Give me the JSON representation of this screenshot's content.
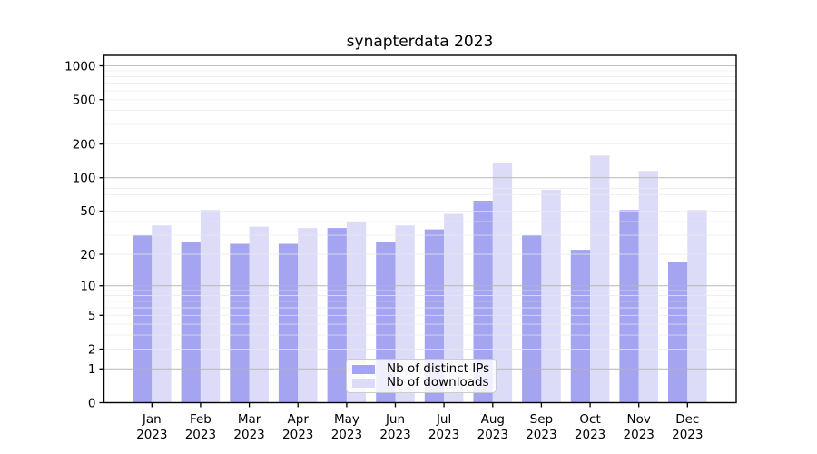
{
  "figure": {
    "background": "#ffffff",
    "axis_color": "#000000",
    "major_grid_color": "#b5b5b5",
    "minor_grid_color": "#e9e9e9"
  },
  "chart_data": {
    "type": "bar",
    "title": "synapterdata 2023",
    "xlabel": "",
    "ylabel": "",
    "yscale": "log1p",
    "ylim": [
      0,
      1239
    ],
    "grid": "on",
    "legend_position": "lower center",
    "x_tick_months": [
      "Jan",
      "Feb",
      "Mar",
      "Apr",
      "May",
      "Jun",
      "Jul",
      "Aug",
      "Sep",
      "Oct",
      "Nov",
      "Dec"
    ],
    "x_tick_year": "2023",
    "ytick_labels": [
      "0",
      "1",
      "2",
      "5",
      "10",
      "20",
      "50",
      "100",
      "200",
      "500",
      "1000"
    ],
    "ytick_values": [
      0,
      1,
      2,
      5,
      10,
      20,
      50,
      100,
      200,
      500,
      1000
    ],
    "grid_major_values": [
      1,
      10,
      100,
      1000
    ],
    "grid_minor_values": [
      2,
      3,
      4,
      5,
      6,
      7,
      8,
      9,
      20,
      30,
      40,
      50,
      60,
      70,
      80,
      90,
      200,
      300,
      400,
      500,
      600,
      700,
      800,
      900
    ],
    "series": [
      {
        "name": "Nb of distinct IPs",
        "color": "#a4a4f0",
        "values": [
          30,
          26,
          25,
          25,
          35,
          26,
          34,
          62,
          30,
          22,
          51,
          17
        ]
      },
      {
        "name": "Nb of downloads",
        "color": "#dcdcf8",
        "values": [
          37,
          51,
          36,
          35,
          40,
          37,
          47,
          137,
          78,
          158,
          115,
          51
        ]
      }
    ]
  }
}
